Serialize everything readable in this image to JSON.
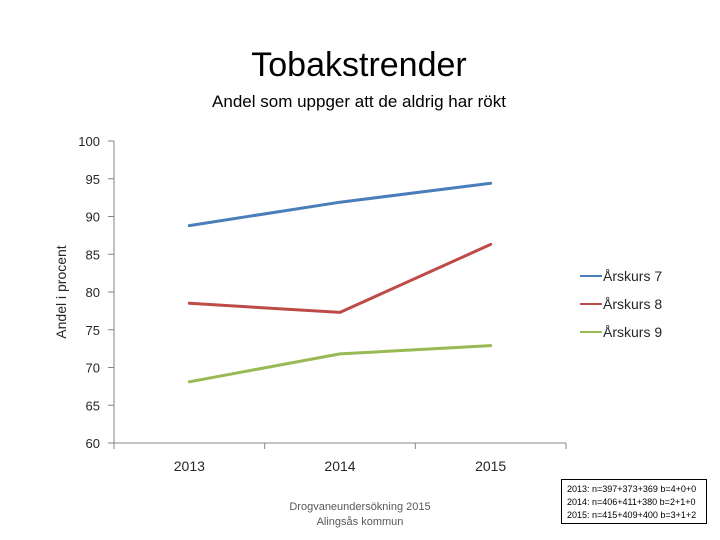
{
  "chart_data": {
    "type": "line",
    "title": "Tobakstrender",
    "subtitle": "Andel som uppger att de aldrig har rökt",
    "xlabel": "",
    "ylabel": "Andel i procent",
    "categories": [
      "2013",
      "2014",
      "2015"
    ],
    "ylim": [
      60,
      100
    ],
    "yticks": [
      60,
      65,
      70,
      75,
      80,
      85,
      90,
      95,
      100
    ],
    "grid": false,
    "legend_position": "right",
    "series": [
      {
        "name": "Årskurs 7",
        "color": "#4a7ebb",
        "values": [
          88.8,
          91.9,
          94.4
        ]
      },
      {
        "name": "Årskurs 8",
        "color": "#be4b48",
        "values": [
          78.5,
          77.3,
          86.3
        ]
      },
      {
        "name": "Årskurs 9",
        "color": "#98b954",
        "values": [
          68.1,
          71.8,
          72.9
        ]
      }
    ]
  },
  "footer": {
    "source_line1": "Drogvaneundersökning 2015",
    "source_line2": "Alingsås kommun",
    "notes": [
      "2013: n=397+373+369 b=4+0+0",
      "2014: n=406+411+380 b=2+1+0",
      "2015: n=415+409+400 b=3+1+2"
    ]
  }
}
